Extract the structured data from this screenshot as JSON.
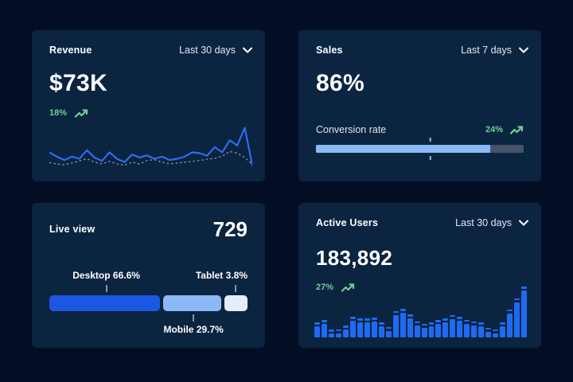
{
  "colors": {
    "page_bg": "#030e24",
    "card_bg": "#0b2440",
    "bar_blue": "#1f6af2",
    "light_blue": "#8ab9f5",
    "pale_blue": "#e4eefb",
    "deep_blue": "#1c57e3",
    "line_blue": "#2e6cf0",
    "dotted_gray": "#8b95a9",
    "track_gray": "#47536b",
    "green": "#6fcf97"
  },
  "cards": {
    "revenue": {
      "title": "Revenue",
      "range_label": "Last 30 days",
      "value": "$73K",
      "delta": "18%"
    },
    "sales": {
      "title": "Sales",
      "range_label": "Last 7 days",
      "value": "86%",
      "delta": "24%",
      "conversion_label": "Conversion rate"
    },
    "live_view": {
      "title": "Live view",
      "value": "729",
      "desktop_label": "Desktop 66.6%",
      "mobile_label": "Mobile 29.7%",
      "tablet_label": "Tablet 3.8%"
    },
    "active_users": {
      "title": "Active Users",
      "range_label": "Last 30 days",
      "value": "183,892",
      "delta": "27%"
    }
  },
  "chart_data": [
    {
      "type": "line",
      "title": "Revenue",
      "range": "Last 30 days",
      "current_value": "$73K",
      "change_pct": 18,
      "grid": false,
      "legend_position": "none",
      "ylim": [
        0,
        100
      ],
      "series": [
        {
          "name": "current",
          "style": "solid",
          "color": "#2e6cf0",
          "values": [
            40,
            30,
            22,
            30,
            25,
            45,
            28,
            20,
            40,
            25,
            17,
            35,
            28,
            33,
            25,
            30,
            22,
            25,
            30,
            40,
            38,
            32,
            52,
            40,
            68,
            56,
            97,
            10
          ]
        },
        {
          "name": "previous",
          "style": "dotted",
          "color": "#8b95a9",
          "values": [
            16,
            13,
            11,
            15,
            20,
            25,
            17,
            13,
            19,
            13,
            10,
            17,
            13,
            21,
            23,
            17,
            13,
            15,
            17,
            19,
            21,
            24,
            26,
            31,
            42,
            38,
            28,
            12
          ]
        }
      ]
    },
    {
      "type": "bar",
      "subtype": "progress",
      "title": "Sales",
      "range": "Last 7 days",
      "metric": "Conversion rate",
      "value_pct": 86,
      "change_pct": 24,
      "fill_pct": 84,
      "marker_pct": 55,
      "fill_color": "#8ab9f5",
      "track_color": "#47536b"
    },
    {
      "type": "bar",
      "subtype": "stacked-horizontal",
      "title": "Live view",
      "total": 729,
      "segments": [
        {
          "label": "Desktop",
          "value_pct": 66.6,
          "color": "#1c57e3",
          "display_pct": 57.5
        },
        {
          "label": "Mobile",
          "value_pct": 29.7,
          "color": "#8ab9f5",
          "display_pct": 30.5
        },
        {
          "label": "Tablet",
          "value_pct": 3.8,
          "color": "#e4eefb",
          "display_pct": 12
        }
      ]
    },
    {
      "type": "bar",
      "title": "Active Users",
      "range": "Last 30 days",
      "current_value": 183892,
      "change_pct": 27,
      "bar_color": "#1f6af2",
      "ylim": [
        0,
        100
      ],
      "values": [
        29,
        34,
        15,
        16,
        23,
        40,
        37,
        37,
        39,
        29,
        21,
        52,
        56,
        45,
        32,
        27,
        29,
        34,
        37,
        44,
        40,
        35,
        32,
        29,
        19,
        16,
        29,
        55,
        77,
        100
      ]
    }
  ]
}
